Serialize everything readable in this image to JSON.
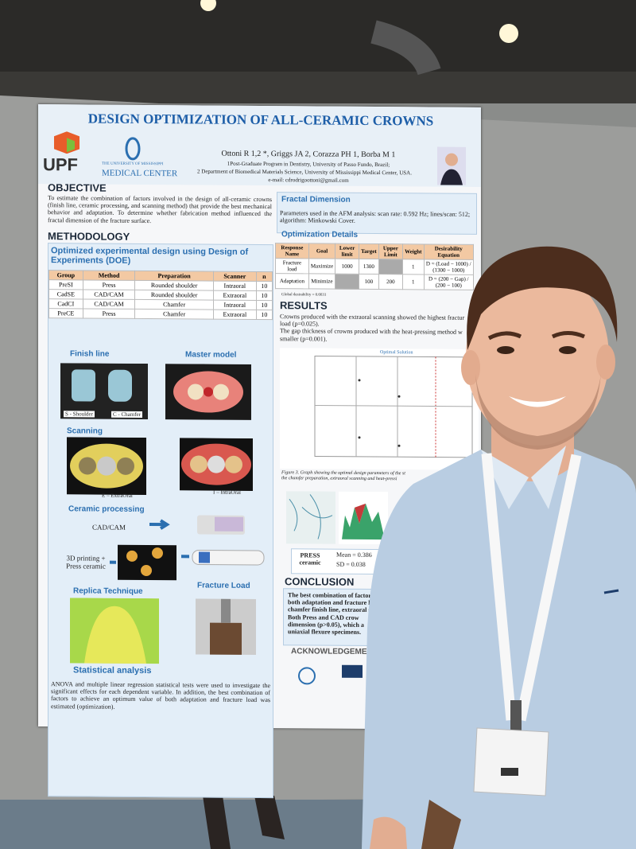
{
  "poster": {
    "title": "DESIGN OPTIMIZATION OF ALL-CERAMIC CROWNS",
    "logos": {
      "upf": "UPF",
      "umc_small": "THE UNIVERSITY OF MISSISSIPPI",
      "umc": "MEDICAL CENTER"
    },
    "authors": "Ottoni R 1,2 *, Griggs JA 2, Corazza PH 1, Borba M 1",
    "affiliations": [
      "1Post-Graduate Program in Dentistry, University of Passo Fundo, Brazil;",
      "2 Department of Biomedical Materials Science, University of Mississippi Medical Center, USA.",
      "e-mail: cdrodrigoottoni@gmail.com"
    ],
    "objective": {
      "heading": "OBJECTIVE",
      "text": "To estimate the combination of factors involved in the design of all-ceramic crowns (finish line, ceramic processing, and scanning method) that provide the best mechanical behavior and adaptation. To determine whether fabrication method influenced the fractal dimension of the fracture surface."
    },
    "methodology": {
      "heading": "METHODOLOGY",
      "subheading": "Optimized experimental design using Design of Experiments (DOE)",
      "table": {
        "header": [
          "Group",
          "Method",
          "Preparation",
          "Scanner",
          "n"
        ],
        "rows": [
          [
            "PreSI",
            "Press",
            "Rounded shoulder",
            "Intraoral",
            "10"
          ],
          [
            "CadSE",
            "CAD/CAM",
            "Rounded shoulder",
            "Extraoral",
            "10"
          ],
          [
            "CadCI",
            "CAD/CAM",
            "Chamfer",
            "Intraoral",
            "10"
          ],
          [
            "PreCE",
            "Press",
            "Chamfer",
            "Extraoral",
            "10"
          ]
        ]
      }
    },
    "panels": {
      "finish_line": "Finish line",
      "master_model": "Master model",
      "scanning": "Scanning",
      "ceramic_processing": "Ceramic processing",
      "replica": "Replica Technique",
      "fracture_load": "Fracture Load",
      "statistical": "Statistical analysis"
    },
    "image_labels": {
      "shoulder": "S - Shoulder",
      "chamfer": "C - Chamfer",
      "extraoral": "E – ExtraOral",
      "intraoral": "I – IntraOral",
      "cadcam": "CAD/CAM",
      "printing": "3D printing + Press ceramic"
    },
    "statistical_text": "ANOVA and multiple linear regression statistical tests were used to investigate the significant effects for each dependent variable. In addition, the best combination of factors to achieve an optimum value of both adaptation and fracture load was estimated (optimization).",
    "fractal": {
      "heading": "Fractal Dimension",
      "text": "Parameters used in the AFM analysis: scan rate: 0.592 Hz; lines/scan: 512; algorithm: Minkowski Cover."
    },
    "optimization": {
      "heading": "Optimization Details",
      "table": {
        "header": [
          "Response Name",
          "Goal",
          "Lower limit",
          "Target",
          "Upper Limit",
          "Weight",
          "Desirability Equation"
        ],
        "rows": [
          [
            "Fracture load",
            "Maximize",
            "1000",
            "1300",
            null,
            "1",
            "D = (Load − 1000) / (1300 − 1000)"
          ],
          [
            "Adaptation",
            "Minimize",
            null,
            "100",
            "200",
            "1",
            "D = (200 − Gap) / (200 − 100)"
          ]
        ]
      },
      "global": "Global desirability = 0.6631"
    },
    "results": {
      "heading": "RESULTS",
      "lines": [
        "Crowns produced with the extraoral scanning showed the highest fractur",
        "load (p=0.025).",
        "The gap thickness of crowns produced with the heat-pressing method w",
        "smaller (p=0.001)."
      ]
    },
    "chart_title": "Optimal Solution",
    "caption": [
      "Figure 3. Graph showing the optimal design parameters of the st",
      "the chamfer preparation, extraoral scanning and heat-pressi"
    ],
    "press": {
      "label": "PRESS ceramic",
      "mean": "Mean = 0.386",
      "sd": "SD = 0.038"
    },
    "conclusion": {
      "heading": "CONCLUSION",
      "lines": [
        "The best combination of factor",
        "both adaptation and fracture lo",
        "chamfer finish line, extraoral s",
        "Both Press and CAD crow",
        "dimension (p>0.05), which a",
        "uniaxial flexure specimens."
      ]
    },
    "acknowledgements": "ACKNOWLEDGEMEN"
  }
}
